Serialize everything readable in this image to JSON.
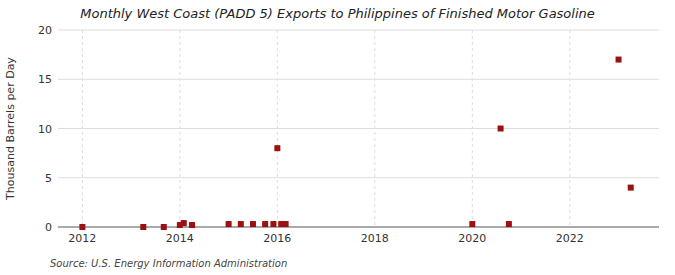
{
  "chart_data": {
    "type": "scatter",
    "title": "Monthly West Coast (PADD 5) Exports to Philippines of Finished Motor Gasoline",
    "y_label": "Thousand Barrels per Day",
    "annotations": [
      "Source: U.S. Energy Information Administration"
    ],
    "color": "#9b1010",
    "marker": "square",
    "grid": true,
    "xlim": [
      2011.5,
      2023.83
    ],
    "ylim": [
      0,
      20
    ],
    "xticks": [
      2012,
      2014,
      2016,
      2018,
      2020,
      2022
    ],
    "yticks": [
      0,
      5,
      10,
      15,
      20
    ],
    "x": [
      2012.0,
      2013.25,
      2013.67,
      2014.0,
      2014.08,
      2014.25,
      2015.0,
      2015.25,
      2015.5,
      2015.75,
      2015.92,
      2016.0,
      2016.08,
      2016.17,
      2020.0,
      2020.58,
      2020.75,
      2023.0,
      2023.25
    ],
    "values": [
      0.0,
      0.0,
      0.0,
      0.2,
      0.4,
      0.2,
      0.3,
      0.3,
      0.3,
      0.3,
      0.3,
      8.0,
      0.3,
      0.3,
      0.3,
      10.0,
      0.3,
      17.0,
      4.0
    ]
  }
}
